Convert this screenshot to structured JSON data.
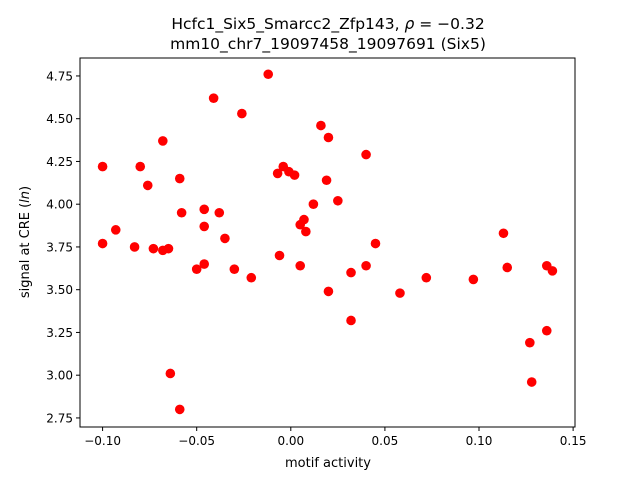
{
  "chart_data": {
    "type": "scatter",
    "title_line1": "Hcfc1_Six5_Smarcc2_Zfp143, ",
    "title_rho": "ρ",
    "title_rho_value": " = −0.32",
    "title_line2": "mm10_chr7_19097458_19097691 (Six5)",
    "xlabel": "motif activity",
    "ylabel_prefix": "signal at CRE (",
    "ylabel_italic": "ln",
    "ylabel_suffix": ")",
    "xlim": [
      -0.112,
      0.151
    ],
    "ylim": [
      2.697,
      4.855
    ],
    "xticks": [
      -0.1,
      -0.05,
      0.0,
      0.05,
      0.1,
      0.15
    ],
    "xtick_labels": [
      "−0.10",
      "−0.05",
      "0.00",
      "0.05",
      "0.10",
      "0.15"
    ],
    "yticks": [
      2.75,
      3.0,
      3.25,
      3.5,
      3.75,
      4.0,
      4.25,
      4.5,
      4.75
    ],
    "ytick_labels": [
      "2.75",
      "3.00",
      "3.25",
      "3.50",
      "3.75",
      "4.00",
      "4.25",
      "4.50",
      "4.75"
    ],
    "grid": false,
    "marker_color": "#ff0000",
    "points": [
      [
        -0.1,
        4.22
      ],
      [
        -0.1,
        3.77
      ],
      [
        -0.093,
        3.85
      ],
      [
        -0.083,
        3.75
      ],
      [
        -0.08,
        4.22
      ],
      [
        -0.076,
        4.11
      ],
      [
        -0.073,
        3.74
      ],
      [
        -0.068,
        4.37
      ],
      [
        -0.068,
        3.73
      ],
      [
        -0.065,
        3.74
      ],
      [
        -0.064,
        3.01
      ],
      [
        -0.059,
        4.15
      ],
      [
        -0.059,
        2.8
      ],
      [
        -0.058,
        3.95
      ],
      [
        -0.05,
        3.62
      ],
      [
        -0.046,
        3.65
      ],
      [
        -0.046,
        3.97
      ],
      [
        -0.046,
        3.87
      ],
      [
        -0.041,
        4.62
      ],
      [
        -0.038,
        3.95
      ],
      [
        -0.035,
        3.8
      ],
      [
        -0.03,
        3.62
      ],
      [
        -0.026,
        4.53
      ],
      [
        -0.021,
        3.57
      ],
      [
        -0.012,
        4.76
      ],
      [
        -0.007,
        4.18
      ],
      [
        -0.006,
        3.7
      ],
      [
        -0.004,
        4.22
      ],
      [
        -0.001,
        4.19
      ],
      [
        0.002,
        4.17
      ],
      [
        0.005,
        3.88
      ],
      [
        0.005,
        3.64
      ],
      [
        0.007,
        3.91
      ],
      [
        0.008,
        3.84
      ],
      [
        0.012,
        4.0
      ],
      [
        0.016,
        4.46
      ],
      [
        0.019,
        4.14
      ],
      [
        0.02,
        4.39
      ],
      [
        0.02,
        3.49
      ],
      [
        0.025,
        4.02
      ],
      [
        0.032,
        3.6
      ],
      [
        0.032,
        3.32
      ],
      [
        0.04,
        3.64
      ],
      [
        0.04,
        4.29
      ],
      [
        0.045,
        3.77
      ],
      [
        0.058,
        3.48
      ],
      [
        0.072,
        3.57
      ],
      [
        0.097,
        3.56
      ],
      [
        0.113,
        3.83
      ],
      [
        0.115,
        3.63
      ],
      [
        0.127,
        3.19
      ],
      [
        0.128,
        2.96
      ],
      [
        0.136,
        3.64
      ],
      [
        0.136,
        3.26
      ],
      [
        0.139,
        3.61
      ]
    ]
  }
}
